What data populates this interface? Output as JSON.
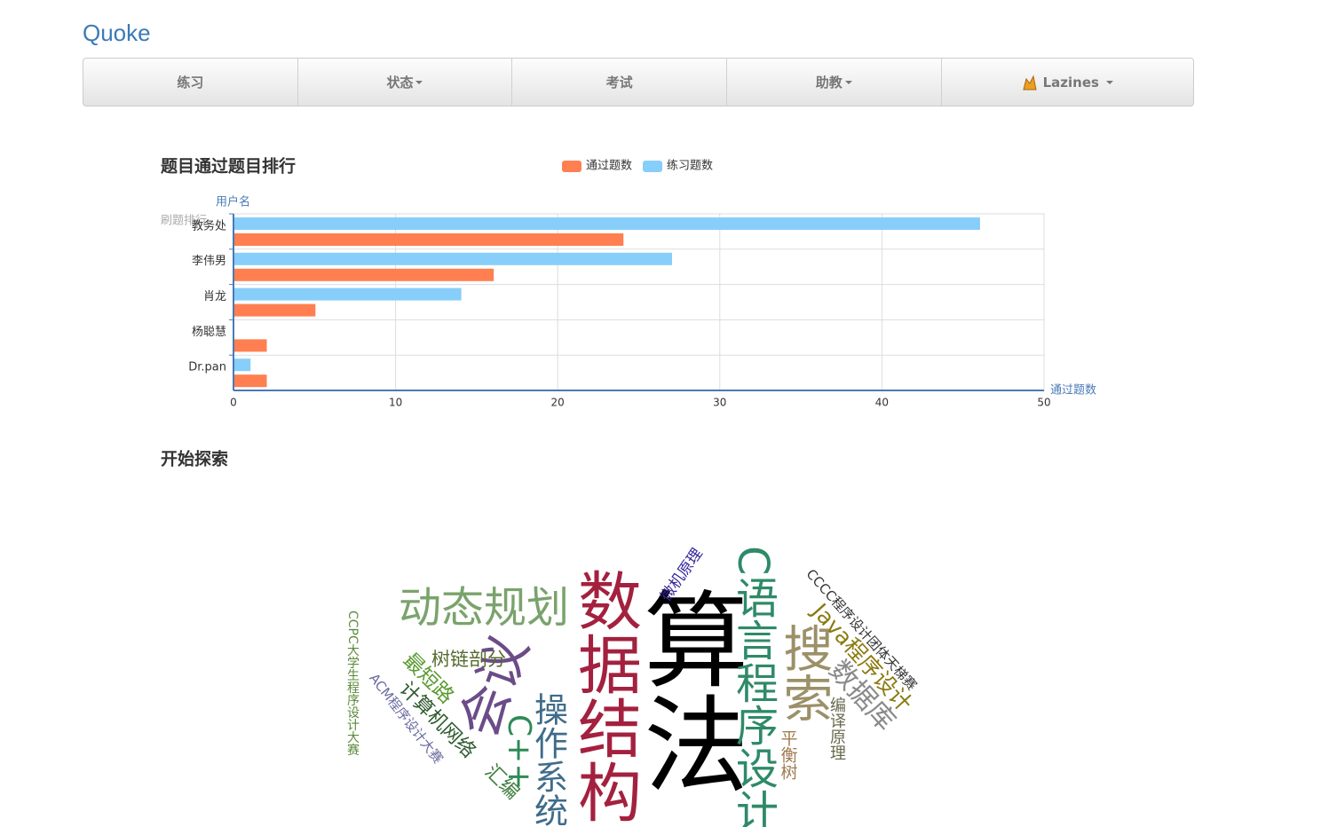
{
  "brand": "Quoke",
  "nav": {
    "items": [
      "练习",
      "状态",
      "考试",
      "助教"
    ],
    "user": "Lazines"
  },
  "chart_data": {
    "type": "hbar",
    "title": "题目通过题目排行",
    "subtitle": "刷题排行",
    "y_axis_label": "用户名",
    "x_axis_label": "通过题数",
    "categories": [
      "教务处",
      "李伟男",
      "肖龙",
      "杨聪慧",
      "Dr.pan"
    ],
    "series": [
      {
        "name": "通过题数",
        "color": "#ff7f50",
        "values": [
          24,
          16,
          5,
          2,
          2
        ]
      },
      {
        "name": "练习题数",
        "color": "#87cefa",
        "values": [
          46,
          27,
          14,
          0,
          1
        ]
      }
    ],
    "xlim": [
      0,
      50
    ],
    "xticks": [
      0,
      10,
      20,
      30,
      40,
      50
    ],
    "grid": true,
    "legend": "top"
  },
  "explore": {
    "title": "开始探索",
    "words": [
      {
        "text": "算法",
        "weight": 118,
        "color": "#000000"
      },
      {
        "text": "数据结构",
        "weight": 72,
        "color": "#a3213f"
      },
      {
        "text": "C语言程序设计",
        "weight": 48,
        "color": "#2e8a68"
      },
      {
        "text": "搜索",
        "weight": 56,
        "color": "#9c9068"
      },
      {
        "text": "动态规划",
        "weight": 48,
        "color": "#7aa36c"
      },
      {
        "text": "会议",
        "weight": 58,
        "color": "#6b4c88"
      },
      {
        "text": "操作系统",
        "weight": 38,
        "color": "#3f6c8a"
      },
      {
        "text": "C++",
        "weight": 36,
        "color": "#2e8a57"
      },
      {
        "text": "汇编",
        "weight": 22,
        "color": "#3e7e3e"
      },
      {
        "text": "树链剖分",
        "weight": 21,
        "color": "#556b2f"
      },
      {
        "text": "最短路",
        "weight": 23,
        "color": "#5a9a30"
      },
      {
        "text": "计算机网络",
        "weight": 22,
        "color": "#2f5a2f"
      },
      {
        "text": "ACM程序设计大赛",
        "weight": 15,
        "color": "#6a6aa0"
      },
      {
        "text": "CCPC大学生程序设计大赛",
        "weight": 14,
        "color": "#5a8a3a"
      },
      {
        "text": "微机原理",
        "weight": 17,
        "color": "#35279a"
      },
      {
        "text": "CCCC程序设计团体天梯赛",
        "weight": 15,
        "color": "#333333"
      },
      {
        "text": "Java程序设计",
        "weight": 25,
        "color": "#8a7a10"
      },
      {
        "text": "数据库",
        "weight": 31,
        "color": "#8a8a8a"
      },
      {
        "text": "编译原理",
        "weight": 18,
        "color": "#6a6a50"
      },
      {
        "text": "平衡树",
        "weight": 19,
        "color": "#a07a50"
      }
    ]
  }
}
